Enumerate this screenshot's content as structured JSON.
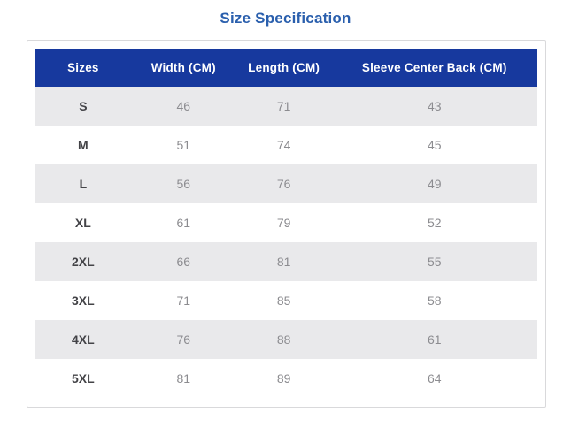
{
  "title": "Size Specification",
  "colors": {
    "title_text": "#2a5fad",
    "header_background": "#17399e",
    "header_text": "#ffffff",
    "stripe_row": "#e9e9eb",
    "card_border": "#d9d9db",
    "value_text": "#8c8c90",
    "size_label_text": "#434347"
  },
  "table": {
    "columns": [
      "Sizes",
      "Width (CM)",
      "Length (CM)",
      "Sleeve Center Back (CM)"
    ],
    "rows": [
      {
        "size": "S",
        "width": "46",
        "length": "71",
        "sleeve": "43"
      },
      {
        "size": "M",
        "width": "51",
        "length": "74",
        "sleeve": "45"
      },
      {
        "size": "L",
        "width": "56",
        "length": "76",
        "sleeve": "49"
      },
      {
        "size": "XL",
        "width": "61",
        "length": "79",
        "sleeve": "52"
      },
      {
        "size": "2XL",
        "width": "66",
        "length": "81",
        "sleeve": "55"
      },
      {
        "size": "3XL",
        "width": "71",
        "length": "85",
        "sleeve": "58"
      },
      {
        "size": "4XL",
        "width": "76",
        "length": "88",
        "sleeve": "61"
      },
      {
        "size": "5XL",
        "width": "81",
        "length": "89",
        "sleeve": "64"
      }
    ]
  },
  "chart_data": {
    "type": "table",
    "title": "Size Specification",
    "columns": [
      "Sizes",
      "Width (CM)",
      "Length (CM)",
      "Sleeve Center Back (CM)"
    ],
    "rows": [
      [
        "S",
        46,
        71,
        43
      ],
      [
        "M",
        51,
        74,
        45
      ],
      [
        "L",
        56,
        76,
        49
      ],
      [
        "XL",
        61,
        79,
        52
      ],
      [
        "2XL",
        66,
        81,
        55
      ],
      [
        "3XL",
        71,
        85,
        58
      ],
      [
        "4XL",
        76,
        88,
        61
      ],
      [
        "5XL",
        81,
        89,
        64
      ]
    ],
    "layout": {
      "zebra_striping": true,
      "header_style": "navy-filled",
      "alignment": "center"
    }
  }
}
